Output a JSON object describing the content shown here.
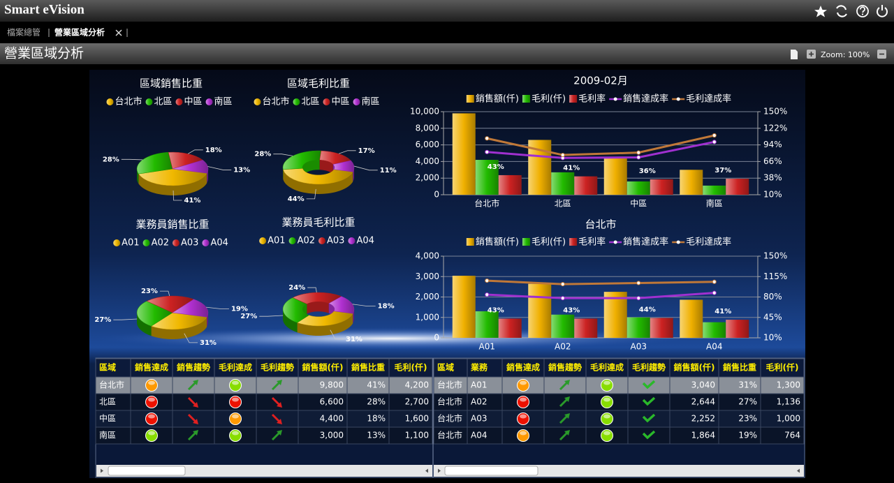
{
  "header": {
    "title": "Smart eVision"
  },
  "tabs": [
    "檔案總管",
    "營業區域分析"
  ],
  "page": {
    "title": "營業區域分析",
    "zoom": "Zoom: 100%"
  },
  "chart_data": [
    {
      "type": "pie",
      "title": "區域銷售比重",
      "donut": false,
      "categories": [
        "台北市",
        "北區",
        "中區",
        "南區"
      ],
      "colors": [
        "#f0b800",
        "#22bb00",
        "#cc2222",
        "#b030d0"
      ],
      "values": [
        41,
        28,
        18,
        13
      ],
      "value_labels": [
        "41%",
        "28%",
        "18%",
        "13%"
      ]
    },
    {
      "type": "pie",
      "title": "區域毛利比重",
      "donut": true,
      "categories": [
        "台北市",
        "北區",
        "中區",
        "南區"
      ],
      "colors": [
        "#f0b800",
        "#22bb00",
        "#cc2222",
        "#b030d0"
      ],
      "values": [
        44,
        28,
        17,
        11
      ],
      "value_labels": [
        "44%",
        "28%",
        "17%",
        "11%"
      ]
    },
    {
      "type": "pie",
      "title": "業務員銷售比重",
      "donut": false,
      "categories": [
        "A01",
        "A02",
        "A03",
        "A04"
      ],
      "colors": [
        "#f0b800",
        "#22bb00",
        "#cc2222",
        "#b030d0"
      ],
      "values": [
        31,
        27,
        23,
        19
      ],
      "value_labels": [
        "31%",
        "27%",
        "23%",
        "19%"
      ]
    },
    {
      "type": "pie",
      "title": "業務員毛利比重",
      "donut": true,
      "categories": [
        "A01",
        "A02",
        "A03",
        "A04"
      ],
      "colors": [
        "#f0b800",
        "#22bb00",
        "#cc2222",
        "#b030d0"
      ],
      "values": [
        31,
        27,
        24,
        18
      ],
      "value_labels": [
        "31%",
        "27%",
        "24%",
        "18%"
      ]
    },
    {
      "type": "combo",
      "title": "2009-02月",
      "grid": true,
      "categories": [
        "台北市",
        "北區",
        "中區",
        "南區"
      ],
      "ylim": [
        0,
        10000
      ],
      "yticks": [
        0,
        {
          "value": 2000,
          "label": "2,000"
        },
        {
          "value": 4000,
          "label": "4,000"
        },
        {
          "value": 6000,
          "label": "6,000"
        },
        {
          "value": 8000,
          "label": "8,000"
        },
        {
          "value": 10000,
          "label": "10,000"
        }
      ],
      "y2lim": [
        10,
        150
      ],
      "y2ticks": [
        {
          "value": 10,
          "label": "10%"
        },
        {
          "value": 38,
          "label": "38%"
        },
        {
          "value": 66,
          "label": "66%"
        },
        {
          "value": 94,
          "label": "94%"
        },
        {
          "value": 122,
          "label": "122%"
        },
        {
          "value": 150,
          "label": "150%"
        }
      ],
      "series": [
        {
          "name": "銷售額(仟)",
          "type": "bar",
          "color": "#f0b000",
          "values": [
            9800,
            6600,
            4400,
            3000
          ]
        },
        {
          "name": "毛利(仟)",
          "type": "bar",
          "color": "#22bb00",
          "values": [
            4200,
            2700,
            1600,
            1100
          ]
        },
        {
          "name": "毛利率",
          "type": "bar",
          "axis": "y2",
          "color": "#cc2222",
          "values": [
            43,
            41,
            36,
            37
          ],
          "value_labels": [
            "43%",
            "41%",
            "36%",
            "37%"
          ]
        },
        {
          "name": "銷售達成率",
          "type": "line",
          "axis": "y2",
          "color": "#a030d0",
          "values": [
            82,
            72,
            73,
            99
          ]
        },
        {
          "name": "毛利達成率",
          "type": "line",
          "axis": "y2",
          "color": "#c07838",
          "values": [
            105,
            77,
            81,
            110
          ]
        }
      ]
    },
    {
      "type": "combo",
      "title": "台北市",
      "grid": true,
      "categories": [
        "A01",
        "A02",
        "A03",
        "A04"
      ],
      "ylim": [
        0,
        4000
      ],
      "yticks": [
        0,
        {
          "value": 1000,
          "label": "1,000"
        },
        {
          "value": 2000,
          "label": "2,000"
        },
        {
          "value": 3000,
          "label": "3,000"
        },
        {
          "value": 4000,
          "label": "4,000"
        }
      ],
      "y2lim": [
        10,
        150
      ],
      "y2ticks": [
        {
          "value": 10,
          "label": "10%"
        },
        {
          "value": 45,
          "label": "45%"
        },
        {
          "value": 80,
          "label": "80%"
        },
        {
          "value": 115,
          "label": "115%"
        },
        {
          "value": 150,
          "label": "150%"
        }
      ],
      "series": [
        {
          "name": "銷售額(仟)",
          "type": "bar",
          "color": "#f0b000",
          "values": [
            3040,
            2644,
            2252,
            1864
          ]
        },
        {
          "name": "毛利(仟)",
          "type": "bar",
          "color": "#22bb00",
          "values": [
            1300,
            1136,
            1000,
            764
          ]
        },
        {
          "name": "毛利率",
          "type": "bar",
          "axis": "y2",
          "color": "#cc2222",
          "values": [
            43,
            43,
            44,
            41
          ],
          "value_labels": [
            "43%",
            "43%",
            "44%",
            "41%"
          ]
        },
        {
          "name": "銷售達成率",
          "type": "line",
          "axis": "y2",
          "color": "#a030d0",
          "values": [
            84,
            78,
            78,
            87
          ]
        },
        {
          "name": "毛利達成率",
          "type": "line",
          "axis": "y2",
          "color": "#c07838",
          "values": [
            108,
            102,
            104,
            106
          ]
        }
      ]
    }
  ],
  "tables": [
    {
      "columns": [
        "區域",
        "銷售達成",
        "銷售趨勢",
        "毛利達成",
        "毛利趨勢",
        "銷售額(仟)",
        "銷售比重",
        "毛利(仟)"
      ],
      "rows": [
        [
          "台北市",
          null,
          null,
          null,
          null,
          "9,800",
          "41%",
          "4,200"
        ],
        [
          "北區",
          null,
          null,
          null,
          null,
          "6,600",
          "28%",
          "2,700"
        ],
        [
          "中區",
          null,
          null,
          null,
          null,
          "4,400",
          "18%",
          "1,600"
        ],
        [
          "南區",
          null,
          null,
          null,
          null,
          "3,000",
          "13%",
          "1,100"
        ]
      ]
    },
    {
      "columns": [
        "區域",
        "業務",
        "銷售達成",
        "銷售趨勢",
        "毛利達成",
        "毛利趨勢",
        "銷售額(仟)",
        "銷售比重",
        "毛利(仟)"
      ],
      "rows": [
        [
          "台北市",
          "A01",
          null,
          null,
          null,
          null,
          "3,040",
          "31%",
          "1,300"
        ],
        [
          "台北市",
          "A02",
          null,
          null,
          null,
          null,
          "2,644",
          "27%",
          "1,136"
        ],
        [
          "台北市",
          "A03",
          null,
          null,
          null,
          null,
          "2,252",
          "23%",
          "1,000"
        ],
        [
          "台北市",
          "A04",
          null,
          null,
          null,
          null,
          "1,864",
          "19%",
          "764"
        ]
      ]
    }
  ]
}
